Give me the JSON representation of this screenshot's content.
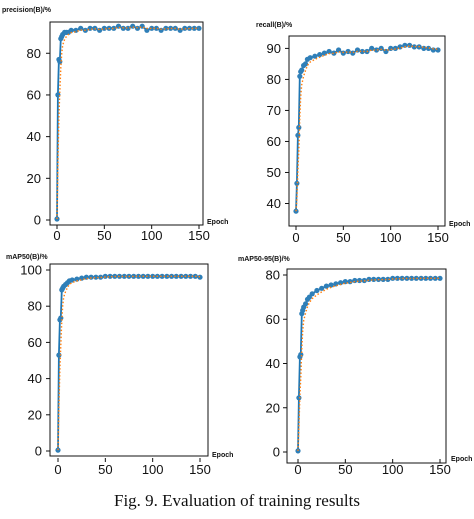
{
  "figure": {
    "caption": "Fig. 9.   Evaluation of training results"
  },
  "chart_data": [
    {
      "type": "line",
      "ylabel": "precision(B)/%",
      "xlabel": "Epoch",
      "xlim": [
        0,
        150
      ],
      "ylim": [
        0,
        95
      ],
      "xticks": [
        0,
        50,
        100,
        150
      ],
      "yticks": [
        0,
        20,
        40,
        60,
        80
      ],
      "grid": false,
      "series": [
        {
          "x": [
            0,
            1,
            2,
            3,
            4,
            5,
            6,
            8,
            10,
            12,
            15,
            20,
            25,
            30,
            35,
            40,
            45,
            50,
            55,
            60,
            65,
            70,
            75,
            80,
            85,
            90,
            95,
            100,
            105,
            110,
            115,
            120,
            125,
            130,
            135,
            140,
            145,
            150
          ],
          "y": [
            0.5,
            60,
            77,
            76,
            87,
            88,
            89,
            90,
            90,
            90,
            91,
            91,
            92,
            91,
            92,
            92,
            91,
            92,
            92,
            92,
            93,
            92,
            92,
            93,
            92,
            93,
            91,
            92,
            92,
            91,
            92,
            92,
            92,
            91,
            92,
            92,
            92,
            92
          ]
        }
      ]
    },
    {
      "type": "line",
      "ylabel": "recall(B)/%",
      "xlabel": "Epoch",
      "xlim": [
        0,
        150
      ],
      "ylim": [
        35,
        94
      ],
      "xticks": [
        0,
        50,
        100,
        150
      ],
      "yticks": [
        40,
        50,
        60,
        70,
        80,
        90
      ],
      "grid": false,
      "series": [
        {
          "x": [
            0,
            1,
            2,
            3,
            4,
            5,
            6,
            8,
            10,
            12,
            15,
            20,
            25,
            30,
            35,
            40,
            45,
            50,
            55,
            60,
            65,
            70,
            75,
            80,
            85,
            90,
            95,
            100,
            105,
            110,
            115,
            120,
            125,
            130,
            135,
            140,
            145,
            150
          ],
          "y": [
            37.5,
            46.5,
            62,
            64.5,
            81,
            82.5,
            83,
            84.5,
            85,
            86.5,
            87,
            87.5,
            88,
            88.5,
            89,
            88.5,
            89.5,
            88.5,
            89,
            88.5,
            89.5,
            89,
            89,
            90,
            89.5,
            90,
            89,
            90,
            90,
            90.5,
            91,
            91,
            90.5,
            90.5,
            90,
            90,
            89.5,
            89.5
          ]
        }
      ]
    },
    {
      "type": "line",
      "ylabel": "mAP50(B)/%",
      "xlabel": "Epoch",
      "xlim": [
        0,
        150
      ],
      "ylim": [
        0,
        100
      ],
      "xticks": [
        0,
        50,
        100,
        150
      ],
      "yticks": [
        0,
        20,
        40,
        60,
        80,
        100
      ],
      "grid": false,
      "series": [
        {
          "x": [
            0,
            1,
            2,
            3,
            4,
            5,
            6,
            8,
            10,
            12,
            15,
            20,
            25,
            30,
            35,
            40,
            45,
            50,
            55,
            60,
            65,
            70,
            75,
            80,
            85,
            90,
            95,
            100,
            105,
            110,
            115,
            120,
            125,
            130,
            135,
            140,
            145,
            150
          ],
          "y": [
            0.5,
            53,
            72.5,
            73.5,
            89,
            90,
            91,
            92,
            93,
            94,
            94.5,
            95,
            95.5,
            96,
            96,
            96,
            96,
            96.5,
            96.5,
            96.5,
            96.5,
            96.5,
            96.5,
            96.5,
            96.5,
            96.5,
            96.5,
            96.5,
            96.5,
            96.5,
            96.5,
            96.5,
            96.5,
            96.5,
            96.5,
            96.5,
            96.5,
            96
          ]
        }
      ]
    },
    {
      "type": "line",
      "ylabel": "mAP50-95(B)/%",
      "xlabel": "Epoch",
      "xlim": [
        0,
        150
      ],
      "ylim": [
        0,
        80
      ],
      "xticks": [
        0,
        50,
        100,
        150
      ],
      "yticks": [
        0,
        20,
        40,
        60,
        80
      ],
      "grid": false,
      "series": [
        {
          "x": [
            0,
            1,
            2,
            3,
            4,
            5,
            6,
            8,
            10,
            12,
            15,
            20,
            25,
            30,
            35,
            40,
            45,
            50,
            55,
            60,
            65,
            70,
            75,
            80,
            85,
            90,
            95,
            100,
            105,
            110,
            115,
            120,
            125,
            130,
            135,
            140,
            145,
            150
          ],
          "y": [
            0.5,
            24.5,
            43,
            44,
            62.5,
            64,
            65.5,
            67,
            69,
            70,
            71.5,
            73,
            74,
            75,
            75.5,
            76,
            76.5,
            77,
            77,
            77.5,
            77.5,
            77.5,
            78,
            78,
            78,
            78,
            78,
            78.5,
            78.5,
            78.5,
            78.5,
            78.5,
            78.5,
            78.5,
            78.5,
            78.5,
            78.5,
            78.5
          ]
        }
      ]
    }
  ],
  "style": {
    "line_color": "#1f77b4",
    "marker_color": "#2f7fb8",
    "smooth_color": "#ff7f0e"
  }
}
